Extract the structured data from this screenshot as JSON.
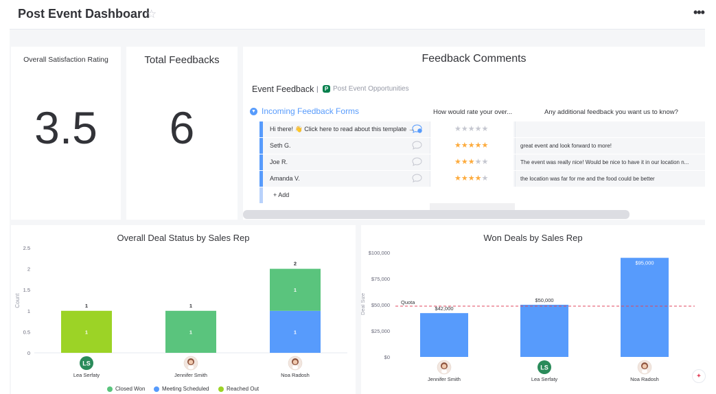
{
  "header": {
    "title": "Post Event Dashboard",
    "star_icon": "star-outline-icon",
    "more_icon": "more-dots-icon"
  },
  "satisfaction": {
    "title": "Overall Satisfaction Rating",
    "value": "3.5"
  },
  "total_feedbacks": {
    "title": "Total Feedbacks",
    "value": "6"
  },
  "comments": {
    "title": "Feedback Comments",
    "board_name": "Event Feedback",
    "separator": "|",
    "workspace_badge": "P",
    "workspace_name": "Post Event Opportunities",
    "group_name": "Incoming Feedback Forms",
    "columns": [
      "How would rate your over...",
      "Any additional feedback you want us to know?"
    ],
    "rows": [
      {
        "name": "Hi there! 👋 Click here to read about this template →",
        "rating": 0,
        "feedback": "",
        "bubble": "info-bubble-icon"
      },
      {
        "name": "Seth G.",
        "rating": 5,
        "feedback": "great event and look forward to more!",
        "bubble": "comment-bubble-icon"
      },
      {
        "name": "Joe R.",
        "rating": 3,
        "feedback": "The event was really nice! Would be nice to have it in our location n...",
        "bubble": "comment-bubble-icon"
      },
      {
        "name": "Amanda V.",
        "rating": 4,
        "feedback": "the location was far for me and the food could be better",
        "bubble": "comment-bubble-icon"
      }
    ],
    "add_label": "+ Add",
    "accent": "#579bfc",
    "star_color": "#fdab3d"
  },
  "chart_data": [
    {
      "type": "bar",
      "title": "Overall Deal Status by Sales Rep",
      "ylabel": "Count",
      "xlabel": "",
      "ylim": [
        0,
        2.5
      ],
      "yticks": [
        "0",
        "0.5",
        "1",
        "1.5",
        "2",
        "2.5"
      ],
      "categories": [
        "Lea Serfaty",
        "Jennifer Smith",
        "Noa Radosh"
      ],
      "avatars": [
        "LS",
        "",
        ""
      ],
      "stacked": true,
      "series": [
        {
          "name": "Meeting Scheduled",
          "color": "#579bfc",
          "values": [
            0,
            0,
            1
          ]
        },
        {
          "name": "Reached Out",
          "color": "#9cd326",
          "values": [
            1,
            0,
            0
          ]
        },
        {
          "name": "Closed Won",
          "color": "#5ac47d",
          "values": [
            0,
            1,
            1
          ]
        }
      ],
      "totals": [
        "1",
        "1",
        "2"
      ],
      "legend": [
        "Closed Won",
        "Meeting Scheduled",
        "Reached Out"
      ],
      "legend_colors": [
        "#5ac47d",
        "#579bfc",
        "#9cd326"
      ],
      "legend_position": "bottom"
    },
    {
      "type": "bar",
      "title": "Won Deals by Sales Rep",
      "ylabel": "Deal Size",
      "xlabel": "",
      "ylim": [
        0,
        100000
      ],
      "yticks": [
        "$0",
        "$25,000",
        "$50,000",
        "$75,000",
        "$100,000"
      ],
      "categories": [
        "Jennifer Smith",
        "Lea Serfaty",
        "Noa Radosh"
      ],
      "avatars": [
        "",
        "LS",
        ""
      ],
      "values": [
        42000,
        50000,
        95000
      ],
      "value_labels": [
        "$42,000",
        "$50,000",
        "$95,000"
      ],
      "color": "#579bfc",
      "quota": {
        "label": "Quota",
        "value": 50000,
        "color": "#e2445c"
      }
    }
  ]
}
